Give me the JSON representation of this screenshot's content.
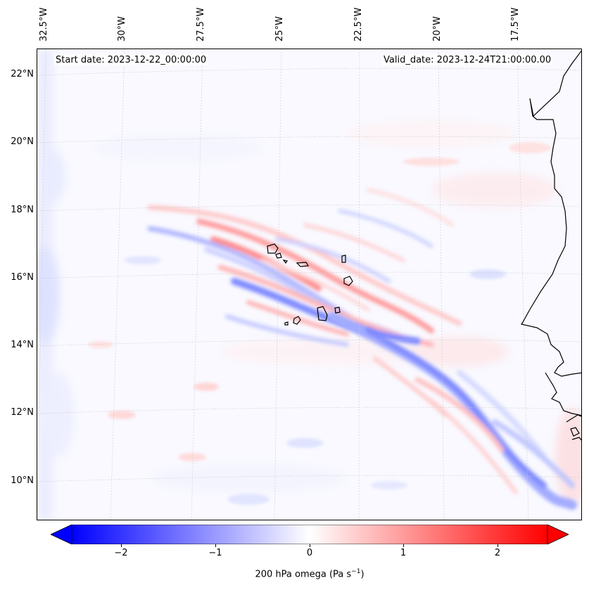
{
  "map": {
    "start_date": "Start date: 2023-12-22_00:00:00",
    "valid_date": "Valid_date: 2023-12-24T21:00:00.00",
    "lon_labels": [
      "32.5°W",
      "30°W",
      "27.5°W",
      "25°W",
      "22.5°W",
      "20°W",
      "17.5°W"
    ],
    "lat_labels": [
      "22°N",
      "20°N",
      "18°N",
      "16°N",
      "14°N",
      "12°N",
      "10°N"
    ]
  },
  "colorbar": {
    "ticks": [
      "−2",
      "−1",
      "0",
      "1",
      "2"
    ],
    "tick_values": [
      -2,
      -1,
      0,
      1,
      2
    ],
    "range": [
      -2.75,
      2.75
    ],
    "label": "200 hPa omega (Pa s",
    "label_sup": "−1",
    "label_end": ")",
    "negative_color": "#0000ff",
    "positive_color": "#ff0000"
  }
}
